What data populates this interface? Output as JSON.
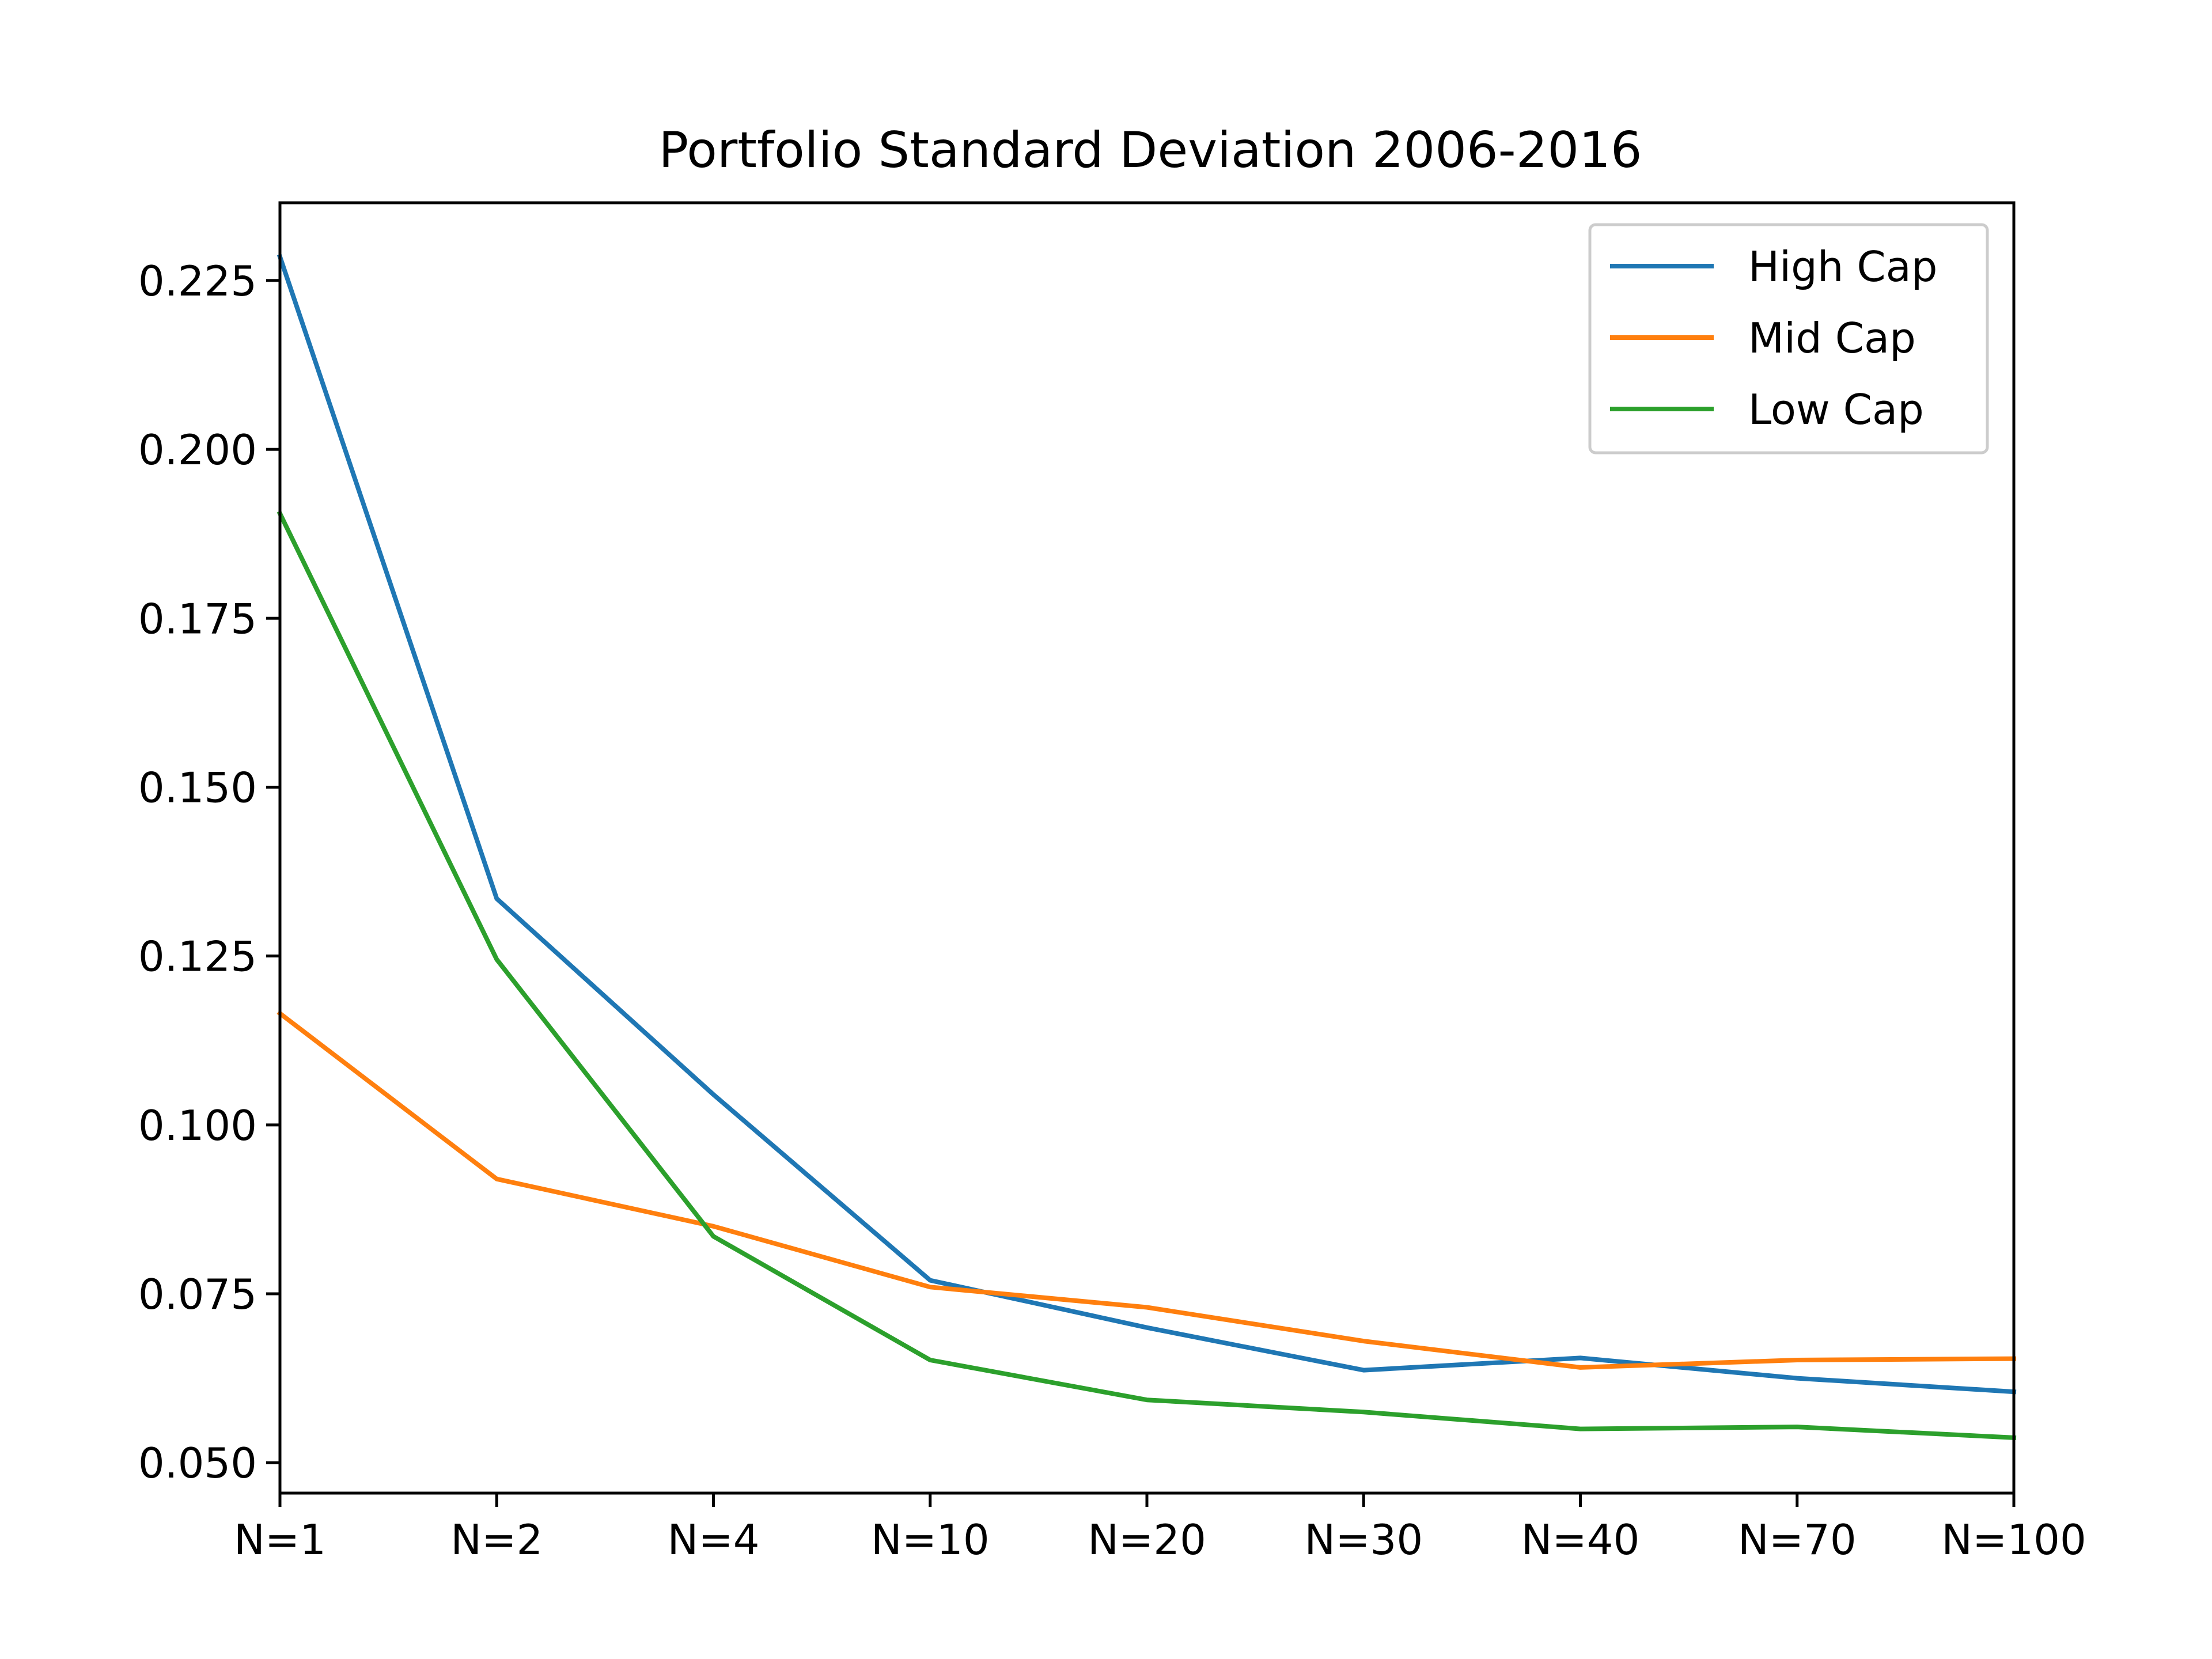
{
  "chart_data": {
    "type": "line",
    "title": "Portfolio Standard Deviation 2006-2016",
    "xlabel": "",
    "ylabel": "",
    "categories": [
      "N=1",
      "N=2",
      "N=4",
      "N=10",
      "N=20",
      "N=30",
      "N=40",
      "N=70",
      "N=100"
    ],
    "ylim": [
      0.0455,
      0.2365
    ],
    "yticks": [
      "0.050",
      "0.075",
      "0.100",
      "0.125",
      "0.150",
      "0.175",
      "0.200",
      "0.225"
    ],
    "grid": false,
    "legend_position": "top-right",
    "series": [
      {
        "name": "High Cap",
        "color": "#1f77b4",
        "values": [
          0.2285,
          0.1335,
          0.1045,
          0.077,
          0.07,
          0.0637,
          0.0655,
          0.0625,
          0.0605
        ]
      },
      {
        "name": "Mid Cap",
        "color": "#ff7f0e",
        "values": [
          0.1165,
          0.092,
          0.085,
          0.076,
          0.073,
          0.068,
          0.0641,
          0.0652,
          0.0654
        ]
      },
      {
        "name": "Low Cap",
        "color": "#2ca02c",
        "values": [
          0.1905,
          0.1245,
          0.0835,
          0.0652,
          0.0593,
          0.0575,
          0.055,
          0.0553,
          0.0537
        ]
      }
    ]
  }
}
